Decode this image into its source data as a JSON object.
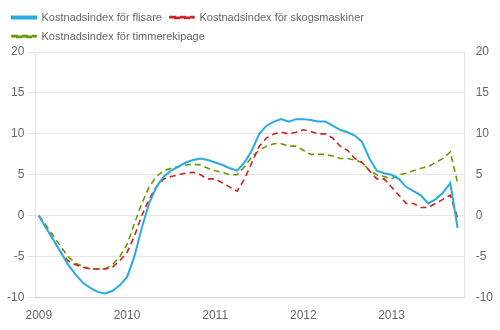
{
  "chart_data": {
    "type": "line",
    "x": [
      2009.0,
      2009.083,
      2009.167,
      2009.25,
      2009.333,
      2009.417,
      2009.5,
      2009.583,
      2009.667,
      2009.75,
      2009.833,
      2009.917,
      2010.0,
      2010.083,
      2010.167,
      2010.25,
      2010.333,
      2010.417,
      2010.5,
      2010.583,
      2010.667,
      2010.75,
      2010.833,
      2010.917,
      2011.0,
      2011.083,
      2011.167,
      2011.25,
      2011.333,
      2011.417,
      2011.5,
      2011.583,
      2011.667,
      2011.75,
      2011.833,
      2011.917,
      2012.0,
      2012.083,
      2012.167,
      2012.25,
      2012.333,
      2012.417,
      2012.5,
      2012.583,
      2012.667,
      2012.75,
      2012.833,
      2012.917,
      2013.0,
      2013.083,
      2013.167,
      2013.25,
      2013.333,
      2013.417,
      2013.5,
      2013.583,
      2013.667,
      2013.75
    ],
    "series": [
      {
        "name": "Kostnadsindex för flisare",
        "color": "#29ABE2",
        "line_style": "solid",
        "values": [
          0.0,
          -1.5,
          -3.0,
          -4.5,
          -6.0,
          -7.2,
          -8.2,
          -8.8,
          -9.3,
          -9.5,
          -9.2,
          -8.5,
          -7.5,
          -5.0,
          -1.5,
          1.5,
          3.5,
          4.8,
          5.5,
          6.0,
          6.5,
          6.8,
          7.0,
          6.8,
          6.5,
          6.2,
          5.8,
          5.5,
          6.5,
          8.0,
          10.0,
          11.0,
          11.5,
          11.8,
          11.5,
          11.8,
          11.8,
          11.7,
          11.5,
          11.5,
          11.0,
          10.5,
          10.2,
          9.8,
          9.0,
          7.0,
          5.5,
          5.2,
          5.0,
          4.5,
          3.5,
          3.0,
          2.5,
          1.5,
          2.0,
          2.8,
          4.0,
          -1.5
        ]
      },
      {
        "name": "Kostnadsindex för skogsmaskiner",
        "color": "#CC2222",
        "line_style": "dashed",
        "values": [
          0.0,
          -1.5,
          -3.0,
          -4.5,
          -5.5,
          -6.0,
          -6.3,
          -6.5,
          -6.5,
          -6.5,
          -6.3,
          -5.5,
          -4.5,
          -2.5,
          0.0,
          2.0,
          3.5,
          4.5,
          4.8,
          5.0,
          5.2,
          5.3,
          5.0,
          4.5,
          4.5,
          4.0,
          3.5,
          3.0,
          4.5,
          6.5,
          8.5,
          9.5,
          10.0,
          10.2,
          10.0,
          10.2,
          10.5,
          10.3,
          10.0,
          10.0,
          9.5,
          8.5,
          8.0,
          7.0,
          6.5,
          5.5,
          4.5,
          4.5,
          3.5,
          2.5,
          1.5,
          1.5,
          1.0,
          1.0,
          1.5,
          2.0,
          2.5,
          -0.3
        ]
      },
      {
        "name": "Kostnadsindex för timmerekipage",
        "color": "#669900",
        "line_style": "dashed",
        "values": [
          0.0,
          -1.2,
          -2.5,
          -3.8,
          -5.0,
          -5.8,
          -6.2,
          -6.5,
          -6.5,
          -6.5,
          -6.0,
          -5.0,
          -3.5,
          -1.0,
          1.5,
          3.5,
          4.8,
          5.5,
          5.8,
          6.0,
          6.2,
          6.3,
          6.2,
          5.8,
          5.5,
          5.3,
          5.0,
          5.0,
          6.0,
          7.2,
          8.0,
          8.5,
          8.8,
          8.8,
          8.5,
          8.5,
          8.0,
          7.5,
          7.5,
          7.5,
          7.3,
          7.0,
          7.0,
          6.8,
          6.5,
          5.5,
          5.0,
          4.8,
          4.5,
          5.0,
          5.2,
          5.5,
          5.8,
          6.0,
          6.5,
          7.0,
          7.8,
          4.0
        ]
      }
    ],
    "xlim": [
      2008.96,
      2013.83
    ],
    "xticks": [
      2009,
      2010,
      2011,
      2012,
      2013
    ],
    "ylim": [
      -10,
      20
    ],
    "yticks": [
      -10,
      -5,
      0,
      5,
      10,
      15,
      20
    ],
    "y2lim": [
      -10,
      20
    ],
    "y2ticks": [
      -10,
      -5,
      0,
      5,
      10,
      15,
      20
    ],
    "grid": true,
    "legend": "upper left"
  }
}
